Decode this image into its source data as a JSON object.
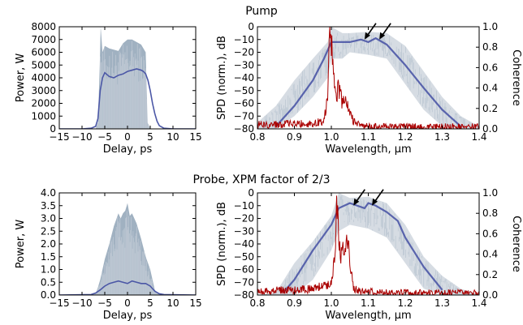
{
  "figure": {
    "row_titles": [
      "Pump",
      "Probe, XPM factor of 2/3"
    ],
    "colors": {
      "envelope_fill": "#8fa3b6",
      "trace_gray": "#c8d0da",
      "mean_line": "#4b57a6",
      "coherence_line": "#aa0000",
      "arrow": "#000000"
    }
  },
  "chart_data": [
    {
      "id": "pump-power",
      "type": "area",
      "xlabel": "Delay, ps",
      "ylabel": "Power, W",
      "xlim": [
        -15,
        15
      ],
      "ylim": [
        0,
        8000
      ],
      "xticks": [
        -15,
        -10,
        -5,
        0,
        5,
        10,
        15
      ],
      "yticks": [
        0,
        1000,
        2000,
        3000,
        4000,
        5000,
        6000,
        7000,
        8000
      ],
      "ytick_labels": [
        "0",
        "1000",
        "2000",
        "3000",
        "4000",
        "5000",
        "6000",
        "7000",
        "8000"
      ],
      "envelope": {
        "x": [
          -15,
          -7,
          -6.5,
          -6.1,
          -5.9,
          -5.5,
          -5,
          -4,
          -2,
          -1,
          0,
          1,
          2,
          3,
          4,
          4.4,
          5,
          5.5,
          6,
          7,
          8,
          10,
          15
        ],
        "y": [
          0,
          0,
          500,
          5000,
          8000,
          6000,
          6500,
          6300,
          6100,
          6700,
          7000,
          7000,
          6800,
          6600,
          6000,
          500,
          0,
          0,
          0,
          0,
          0,
          0,
          0
        ]
      },
      "series": [
        {
          "name": "mean",
          "x": [
            -15,
            -10,
            -8,
            -7,
            -6.5,
            -6,
            -5.5,
            -5,
            -4,
            -3,
            -2,
            -1,
            0,
            1,
            2,
            3,
            3.5,
            4,
            4.5,
            5,
            5.5,
            6,
            6.5,
            7,
            8,
            10,
            15
          ],
          "y": [
            0,
            0,
            50,
            200,
            800,
            3000,
            4000,
            4400,
            4100,
            4000,
            4200,
            4300,
            4500,
            4600,
            4700,
            4600,
            4500,
            4300,
            3800,
            3000,
            2000,
            1200,
            600,
            250,
            50,
            0,
            0
          ]
        }
      ]
    },
    {
      "id": "pump-spectrum",
      "type": "line",
      "xlabel": "Wavelength, μm",
      "ylabel": "SPD (norm.), dB",
      "ylabel_right": "Coherence",
      "xlim": [
        0.8,
        1.4
      ],
      "ylim": [
        -80,
        0
      ],
      "ylim_right": [
        0,
        1
      ],
      "xticks": [
        0.8,
        0.9,
        1.0,
        1.1,
        1.2,
        1.3,
        1.4
      ],
      "xtick_labels": [
        "0.8",
        "0.9",
        "1.0",
        "1.1",
        "1.2",
        "1.3",
        "1.4"
      ],
      "yticks": [
        -80,
        -70,
        -60,
        -50,
        -40,
        -30,
        -20,
        -10,
        0
      ],
      "yticks_right": [
        0,
        0.2,
        0.4,
        0.6,
        0.8,
        1.0
      ],
      "ytick_right_labels": [
        "0.0",
        "0.2",
        "0.4",
        "0.6",
        "0.8",
        "1.0"
      ],
      "envelope": {
        "x": [
          0.8,
          0.85,
          0.9,
          0.95,
          0.99,
          1.0,
          1.03,
          1.05,
          1.1,
          1.15,
          1.2,
          1.25,
          1.3,
          1.35,
          1.4
        ],
        "upper": [
          -75,
          -62,
          -42,
          -25,
          -12,
          0,
          -5,
          -5,
          -4,
          -5,
          -15,
          -35,
          -55,
          -70,
          -78
        ],
        "lower": [
          -80,
          -80,
          -70,
          -55,
          -40,
          -25,
          -25,
          -20,
          -22,
          -25,
          -45,
          -65,
          -78,
          -80,
          -80
        ]
      },
      "series": [
        {
          "name": "mean",
          "x": [
            0.85,
            0.9,
            0.95,
            0.98,
            1.0,
            1.02,
            1.05,
            1.08,
            1.1,
            1.12,
            1.15,
            1.2,
            1.25,
            1.3,
            1.35
          ],
          "y": [
            -78,
            -62,
            -42,
            -25,
            -12,
            -12,
            -12,
            -10,
            -12,
            -9,
            -14,
            -30,
            -48,
            -65,
            -78
          ]
        },
        {
          "name": "coherence",
          "axis": "right",
          "x": [
            0.8,
            0.9,
            0.95,
            0.98,
            0.99,
            0.995,
            1.0,
            1.005,
            1.01,
            1.015,
            1.02,
            1.03,
            1.04,
            1.05,
            1.06,
            1.08,
            1.1,
            1.2,
            1.3,
            1.4
          ],
          "y": [
            0.04,
            0.05,
            0.05,
            0.08,
            0.3,
            0.99,
            0.9,
            0.6,
            0.45,
            0.35,
            0.4,
            0.25,
            0.28,
            0.15,
            0.08,
            0.03,
            0.02,
            0.02,
            0.02,
            0.02
          ]
        }
      ],
      "annotations": [
        {
          "type": "arrow",
          "x": 1.09,
          "y": -10
        },
        {
          "type": "arrow",
          "x": 1.13,
          "y": -10
        }
      ]
    },
    {
      "id": "probe-power",
      "type": "area",
      "xlabel": "Delay, ps",
      "ylabel": "Power, W",
      "xlim": [
        -15,
        15
      ],
      "ylim": [
        0,
        4
      ],
      "xticks": [
        -15,
        -10,
        -5,
        0,
        5,
        10,
        15
      ],
      "yticks": [
        0,
        0.5,
        1.0,
        1.5,
        2.0,
        2.5,
        3.0,
        3.5,
        4.0
      ],
      "ytick_labels": [
        "0.0",
        "0.5",
        "1.0",
        "1.5",
        "2.0",
        "2.5",
        "3.0",
        "3.5",
        "4.0"
      ],
      "envelope": {
        "x": [
          -15,
          -8,
          -7,
          -6.5,
          -6,
          -5,
          -4,
          -3,
          -2,
          -1.5,
          -1,
          -0.5,
          0,
          0.5,
          1,
          2,
          3,
          4,
          5,
          6,
          7,
          15
        ],
        "y": [
          0,
          0,
          0.05,
          0.3,
          0.6,
          1.4,
          2.0,
          2.7,
          3.2,
          3.0,
          3.2,
          3.3,
          3.6,
          3.1,
          3.2,
          2.8,
          2.2,
          1.5,
          1.0,
          0.2,
          0.02,
          0
        ]
      },
      "series": [
        {
          "name": "mean",
          "x": [
            -15,
            -8,
            -7,
            -6,
            -5,
            -4,
            -3,
            -2,
            -1,
            0,
            1,
            2,
            3,
            4,
            5,
            6,
            7,
            8,
            15
          ],
          "y": [
            0,
            0.02,
            0.08,
            0.2,
            0.35,
            0.45,
            0.5,
            0.55,
            0.5,
            0.45,
            0.55,
            0.5,
            0.45,
            0.45,
            0.35,
            0.15,
            0.05,
            0.02,
            0
          ]
        }
      ]
    },
    {
      "id": "probe-spectrum",
      "type": "line",
      "xlabel": "Wavelength, μm",
      "ylabel": "SPD (norm.), dB",
      "ylabel_right": "Coherence",
      "xlim": [
        0.8,
        1.4
      ],
      "ylim": [
        -80,
        0
      ],
      "ylim_right": [
        0,
        1
      ],
      "xticks": [
        0.8,
        0.9,
        1.0,
        1.1,
        1.2,
        1.3,
        1.4
      ],
      "xtick_labels": [
        "0.8",
        "0.9",
        "1.0",
        "1.1",
        "1.2",
        "1.3",
        "1.4"
      ],
      "yticks": [
        -80,
        -70,
        -60,
        -50,
        -40,
        -30,
        -20,
        -10,
        0
      ],
      "yticks_right": [
        0,
        0.2,
        0.4,
        0.6,
        0.8,
        1.0
      ],
      "ytick_right_labels": [
        "0.0",
        "0.2",
        "0.4",
        "0.6",
        "0.8",
        "1.0"
      ],
      "envelope": {
        "x": [
          0.8,
          0.85,
          0.9,
          0.95,
          1.0,
          1.02,
          1.05,
          1.1,
          1.15,
          1.2,
          1.25,
          1.3,
          1.35,
          1.4
        ],
        "upper": [
          -80,
          -78,
          -55,
          -38,
          -18,
          0,
          -4,
          -3,
          -8,
          -25,
          -50,
          -65,
          -75,
          -80
        ],
        "lower": [
          -80,
          -80,
          -80,
          -68,
          -45,
          -30,
          -25,
          -28,
          -35,
          -55,
          -75,
          -80,
          -80,
          -80
        ]
      },
      "series": [
        {
          "name": "mean",
          "x": [
            0.87,
            0.9,
            0.95,
            1.0,
            1.02,
            1.05,
            1.07,
            1.09,
            1.1,
            1.12,
            1.15,
            1.18,
            1.2,
            1.25,
            1.3
          ],
          "y": [
            -78,
            -68,
            -45,
            -25,
            -12,
            -8,
            -10,
            -12,
            -8,
            -10,
            -15,
            -22,
            -35,
            -58,
            -76
          ]
        },
        {
          "name": "coherence",
          "axis": "right",
          "x": [
            0.8,
            0.9,
            0.95,
            1.0,
            1.01,
            1.015,
            1.02,
            1.025,
            1.03,
            1.035,
            1.04,
            1.045,
            1.05,
            1.055,
            1.06,
            1.07,
            1.1,
            1.2,
            1.3,
            1.4
          ],
          "y": [
            0.04,
            0.05,
            0.06,
            0.12,
            0.4,
            0.98,
            0.6,
            0.3,
            0.5,
            0.35,
            0.45,
            0.55,
            0.3,
            0.2,
            0.08,
            0.04,
            0.03,
            0.02,
            0.02,
            0.02
          ]
        }
      ],
      "annotations": [
        {
          "type": "arrow",
          "x": 1.06,
          "y": -10
        },
        {
          "type": "arrow",
          "x": 1.11,
          "y": -10
        }
      ]
    }
  ]
}
